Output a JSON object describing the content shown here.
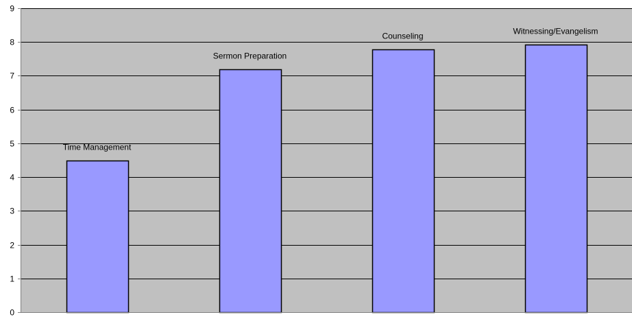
{
  "chart_data": {
    "type": "bar",
    "categories": [
      "Time Management",
      "Sermon Preparation",
      "Counseling",
      "Witnessing/Evangelism"
    ],
    "values": [
      4.5,
      7.2,
      7.78,
      7.93
    ],
    "data_labels": [
      "Time Management",
      "Sermon Preparation",
      "Counseling",
      "Witnessing/Evangelism"
    ],
    "ylim": [
      0,
      9
    ],
    "yticks": [
      0,
      1,
      2,
      3,
      4,
      5,
      6,
      7,
      8,
      9
    ],
    "grid": true,
    "legend": "none",
    "colors": {
      "bar_fill": "#9999ff",
      "bar_stroke": "#000000",
      "plot_background": "#c0c0c0",
      "gridline": "#000000",
      "axis": "#808080"
    }
  }
}
